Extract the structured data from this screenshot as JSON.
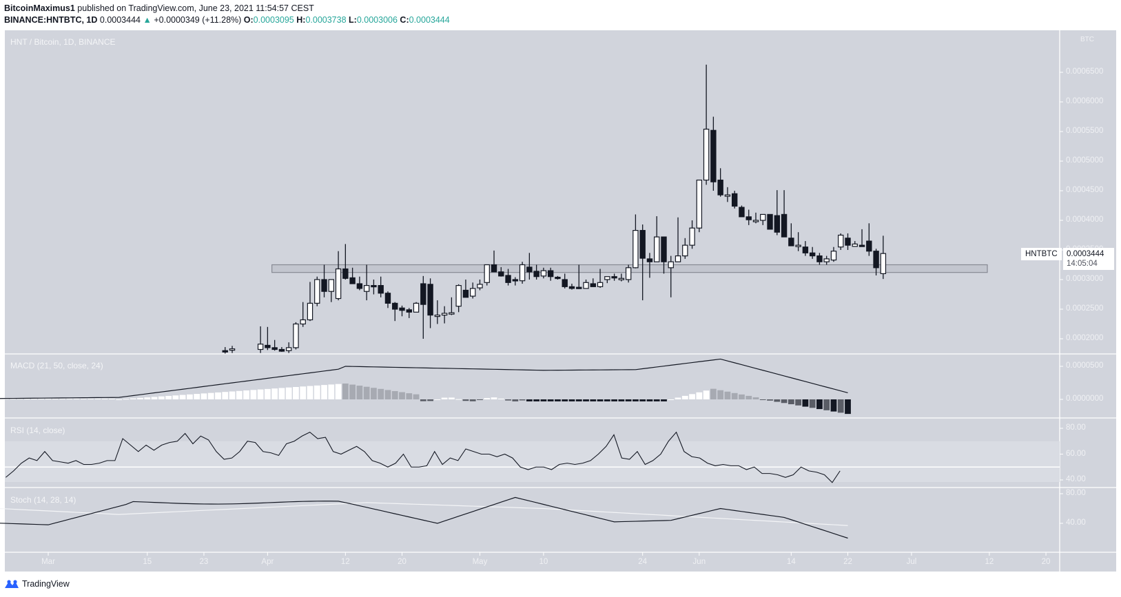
{
  "header": {
    "publisher": "BitcoinMaximus1",
    "published_text": "published on TradingView.com, June 23, 2021 11:54:57 CEST",
    "symbol": "BINANCE:HNTBTC, 1D",
    "last": "0.0003444",
    "change_arrow": "▲",
    "change": "+0.0000349 (+11.28%)",
    "o_label": "O:",
    "o": "0.0003095",
    "h_label": "H:",
    "h": "0.0003738",
    "l_label": "L:",
    "l": "0.0003006",
    "c_label": "C:",
    "c": "0.0003444"
  },
  "main_pane": {
    "title": "HNT / Bitcoin, 1D, BINANCE",
    "currency": "BTC",
    "price_tag_symbol": "HNTBTC",
    "price_tag_value": "0.0003444",
    "countdown": "14:05:04"
  },
  "macd_pane": {
    "title": "MACD (21, 50, close, 24)"
  },
  "rsi_pane": {
    "title": "RSI (14, close)"
  },
  "stoch_pane": {
    "title": "Stoch (14, 28, 14)"
  },
  "footer": {
    "brand": "TradingView"
  },
  "colors": {
    "background": "#d1d4dc",
    "up_body": "#ffffff",
    "down_body": "#131722",
    "grid_line": "#ffffff",
    "axis_text": "#f0f1f4",
    "zone_fill": "#c3c6cf",
    "zone_border": "#868993",
    "rsi_band": "#d9dce3",
    "teal": "#26a69a"
  },
  "chart_data": [
    {
      "type": "candlestick",
      "title": "HNT / Bitcoin, 1D, BINANCE",
      "y_axis": {
        "unit": "BTC",
        "ticks": [
          "0.0002000",
          "0.0002500",
          "0.0003000",
          "0.0003500",
          "0.0004000",
          "0.0004500",
          "0.0005000",
          "0.0005500",
          "0.0006000",
          "0.0006500"
        ],
        "range": [
          0.000185,
          0.000705
        ]
      },
      "x_axis": {
        "ticks": [
          "Mar",
          "15",
          "23",
          "Apr",
          "12",
          "20",
          "May",
          "10",
          "24",
          "Jun",
          "14",
          "22",
          "Jul",
          "12",
          "20"
        ]
      },
      "horizontal_zone": {
        "low": 0.000312,
        "high": 0.000325,
        "from_day": 32,
        "to_day": 175
      },
      "start_date": "2021-03-01",
      "candles_day_ohlc": [
        [
          25,
          0.00018,
          0.000186,
          0.000175,
          0.000178
        ],
        [
          26,
          0.000182,
          0.000188,
          0.000176,
          0.000183
        ],
        [
          30,
          0.000182,
          0.000221,
          0.000176,
          0.000191
        ],
        [
          31,
          0.000189,
          0.00022,
          0.000181,
          0.000185
        ],
        [
          32,
          0.000185,
          0.000198,
          0.00018,
          0.000182
        ],
        [
          33,
          0.000182,
          0.000186,
          0.000178,
          0.000179
        ],
        [
          34,
          0.00018,
          0.000194,
          0.000176,
          0.000185
        ],
        [
          35,
          0.000185,
          0.000228,
          0.000182,
          0.000225
        ],
        [
          36,
          0.000225,
          0.000262,
          0.00022,
          0.000232
        ],
        [
          37,
          0.000232,
          0.000296,
          0.00023,
          0.00026
        ],
        [
          38,
          0.00026,
          0.000305,
          0.000255,
          0.0003
        ],
        [
          39,
          0.0003,
          0.000325,
          0.00027,
          0.00028
        ],
        [
          40,
          0.00028,
          0.0003,
          0.000262,
          0.0003
        ],
        [
          41,
          0.000268,
          0.000348,
          0.000265,
          0.000318
        ],
        [
          42,
          0.000318,
          0.00036,
          0.0003,
          0.000302
        ],
        [
          43,
          0.000303,
          0.00032,
          0.000295,
          0.000293
        ],
        [
          44,
          0.000293,
          0.000305,
          0.000282,
          0.000285
        ],
        [
          45,
          0.00028,
          0.000325,
          0.000265,
          0.00029
        ],
        [
          46,
          0.00029,
          0.0003,
          0.000275,
          0.000288
        ],
        [
          47,
          0.00029,
          0.000305,
          0.00027,
          0.000277
        ],
        [
          48,
          0.000277,
          0.00028,
          0.000252,
          0.00026
        ],
        [
          49,
          0.00026,
          0.000262,
          0.00023,
          0.00025
        ],
        [
          50,
          0.000252,
          0.000256,
          0.000238,
          0.000248
        ],
        [
          51,
          0.000249,
          0.000252,
          0.000235,
          0.000245
        ],
        [
          52,
          0.000245,
          0.000262,
          0.000245,
          0.00026
        ],
        [
          53,
          0.000293,
          0.000306,
          0.0002,
          0.000258
        ],
        [
          54,
          0.000292,
          0.000302,
          0.000218,
          0.00024
        ],
        [
          55,
          0.00024,
          0.000265,
          0.000225,
          0.00024
        ],
        [
          56,
          0.00024,
          0.000255,
          0.000226,
          0.000243
        ],
        [
          57,
          0.000242,
          0.00027,
          0.00024,
          0.000244
        ],
        [
          58,
          0.000255,
          0.000292,
          0.000245,
          0.00029
        ],
        [
          59,
          0.000282,
          0.0003,
          0.00027,
          0.00027
        ],
        [
          60,
          0.000272,
          0.000295,
          0.000268,
          0.000285
        ],
        [
          61,
          0.000286,
          0.0003,
          0.000282,
          0.000292
        ],
        [
          62,
          0.000295,
          0.000325,
          0.00029,
          0.000325
        ],
        [
          63,
          0.000325,
          0.000349,
          0.000313,
          0.000313
        ],
        [
          64,
          0.000313,
          0.000321,
          0.000305,
          0.000306
        ],
        [
          65,
          0.000307,
          0.000318,
          0.00029,
          0.000295
        ],
        [
          66,
          0.0003,
          0.000304,
          0.00029,
          0.000299
        ],
        [
          67,
          0.000298,
          0.00033,
          0.000293,
          0.000325
        ],
        [
          68,
          0.000321,
          0.000345,
          0.0003,
          0.000313
        ],
        [
          69,
          0.000314,
          0.000325,
          0.0003,
          0.000305
        ],
        [
          70,
          0.000306,
          0.00032,
          0.000302,
          0.000315
        ],
        [
          71,
          0.000315,
          0.00032,
          0.000298,
          0.000305
        ],
        [
          72,
          0.000304,
          0.000306,
          0.0003,
          0.000302
        ],
        [
          73,
          0.0003,
          0.00031,
          0.000285,
          0.000288
        ],
        [
          74,
          0.000288,
          0.000293,
          0.000283,
          0.000285
        ],
        [
          75,
          0.000287,
          0.000325,
          0.000284,
          0.000286
        ],
        [
          76,
          0.000285,
          0.0003,
          0.000285,
          0.000295
        ],
        [
          77,
          0.000293,
          0.000302,
          0.000288,
          0.000288
        ],
        [
          78,
          0.000288,
          0.000318,
          0.000286,
          0.000295
        ],
        [
          79,
          0.0003,
          0.000305,
          0.000294,
          0.000305
        ],
        [
          80,
          0.000305,
          0.00031,
          0.000298,
          0.000303
        ],
        [
          81,
          0.0003,
          0.00031,
          0.000297,
          0.000302
        ],
        [
          82,
          0.0003,
          0.000325,
          0.000295,
          0.00032
        ],
        [
          83,
          0.00032,
          0.00041,
          0.000319,
          0.000383
        ],
        [
          84,
          0.000383,
          0.000393,
          0.000265,
          0.000336
        ],
        [
          85,
          0.000335,
          0.000345,
          0.000303,
          0.00033
        ],
        [
          86,
          0.00033,
          0.000407,
          0.00033,
          0.000372
        ],
        [
          87,
          0.000372,
          0.000372,
          0.00031,
          0.00033
        ],
        [
          88,
          0.00032,
          0.00034,
          0.00027,
          0.00033
        ],
        [
          89,
          0.00033,
          0.000405,
          0.00033,
          0.00034
        ],
        [
          90,
          0.00034,
          0.00037,
          0.000335,
          0.000358
        ],
        [
          91,
          0.000358,
          0.0004,
          0.000352,
          0.000387
        ],
        [
          92,
          0.000387,
          0.00043,
          0.00038,
          0.000468
        ],
        [
          93,
          0.000468,
          0.000663,
          0.00046,
          0.000554
        ],
        [
          94,
          0.000552,
          0.000575,
          0.00045,
          0.000465
        ],
        [
          95,
          0.000468,
          0.000488,
          0.00044,
          0.000443
        ],
        [
          96,
          0.000443,
          0.000456,
          0.000431,
          0.000443
        ],
        [
          97,
          0.000445,
          0.00045,
          0.00042,
          0.000424
        ],
        [
          98,
          0.000422,
          0.000425,
          0.000408,
          0.000406
        ],
        [
          99,
          0.000406,
          0.000418,
          0.000392,
          0.000401
        ],
        [
          100,
          0.0004,
          0.000413,
          0.000395,
          0.0004
        ],
        [
          101,
          0.0004,
          0.00041,
          0.000392,
          0.00041
        ],
        [
          102,
          0.00041,
          0.000408,
          0.000385,
          0.000385
        ],
        [
          103,
          0.000408,
          0.000451,
          0.000375,
          0.00038
        ],
        [
          104,
          0.00041,
          0.000451,
          0.000372,
          0.000372
        ],
        [
          105,
          0.00037,
          0.000395,
          0.000358,
          0.000357
        ],
        [
          106,
          0.000357,
          0.00038,
          0.000348,
          0.000358
        ],
        [
          107,
          0.000355,
          0.000365,
          0.00034,
          0.000345
        ],
        [
          108,
          0.000345,
          0.000355,
          0.000335,
          0.00034
        ],
        [
          109,
          0.00034,
          0.000345,
          0.000325,
          0.00033
        ],
        [
          110,
          0.00033,
          0.00034,
          0.000325,
          0.000335
        ],
        [
          111,
          0.000333,
          0.000355,
          0.00033,
          0.000348
        ],
        [
          112,
          0.000355,
          0.000378,
          0.00035,
          0.000375
        ],
        [
          113,
          0.00037,
          0.000378,
          0.00035,
          0.000358
        ],
        [
          114,
          0.000356,
          0.000365,
          0.000356,
          0.00036
        ],
        [
          115,
          0.000358,
          0.000385,
          0.000357,
          0.000356
        ],
        [
          116,
          0.000365,
          0.000395,
          0.00034,
          0.000348
        ],
        [
          117,
          0.000348,
          0.000352,
          0.000307,
          0.00032
        ],
        [
          118,
          0.00031,
          0.000374,
          0.000301,
          0.000344
        ]
      ]
    },
    {
      "type": "line+histogram",
      "title": "MACD (21, 50, close, 24)",
      "y_axis": {
        "ticks": [
          "0.0000000",
          "0.0000500"
        ]
      },
      "macd_line_note": "rises from ~0 in Feb to ~0.000050 mid-April, plateaus ~0.000043, peaks ~0.000060 late May, declines to ~0.000008 by Jun 22",
      "histogram_note": "positive white/gray bars through mid-May, small negatives mid-May, positive late May, growing negative black/gray bars in June"
    },
    {
      "type": "line",
      "title": "RSI (14, close)",
      "y_axis": {
        "ticks": [
          "40.00",
          "60.00",
          "80.00"
        ]
      },
      "band": [
        50,
        70
      ],
      "values_approx": [
        42,
        47,
        53,
        57,
        55,
        62,
        55,
        54,
        53,
        55,
        52,
        52,
        53,
        55,
        55,
        72,
        67,
        62,
        67,
        63,
        67,
        69,
        70,
        76,
        68,
        74,
        71,
        62,
        56,
        57,
        62,
        70,
        69,
        62,
        61,
        59,
        68,
        70,
        74,
        77,
        72,
        73,
        62,
        60,
        63,
        66,
        62,
        55,
        53,
        50,
        53,
        60,
        50,
        50,
        51,
        62,
        52,
        57,
        55,
        64,
        62,
        60,
        60,
        58,
        60,
        57,
        50,
        48,
        50,
        50,
        48,
        52,
        53,
        52,
        53,
        55,
        60,
        66,
        75,
        57,
        56,
        62,
        52,
        55,
        60,
        70,
        77,
        62,
        58,
        57,
        53,
        51,
        52,
        51,
        51,
        48,
        50,
        45,
        45,
        44,
        42,
        44,
        50,
        47,
        46,
        44,
        38,
        47
      ]
    },
    {
      "type": "line",
      "title": "Stoch (14, 28, 14)",
      "y_axis": {
        "ticks": [
          "40.00",
          "80.00"
        ]
      },
      "k_note": "black %K: ~45 early, dips ~38 by Mar, rises to ~72 Apr, ~70 plateau to Apr 12, falls to ~40 late Apr, rises to ~75 May 6, ~42 mid-May, ~55 late May peak ~60, falls to ~25 by Jun 14, ~20 Jun 22",
      "d_note": "white %D: ~70 early, ~52 mid-Mar, ~68 Apr, ~60 May, ~55 late May, drifts down to ~37 by Jun 22"
    }
  ]
}
